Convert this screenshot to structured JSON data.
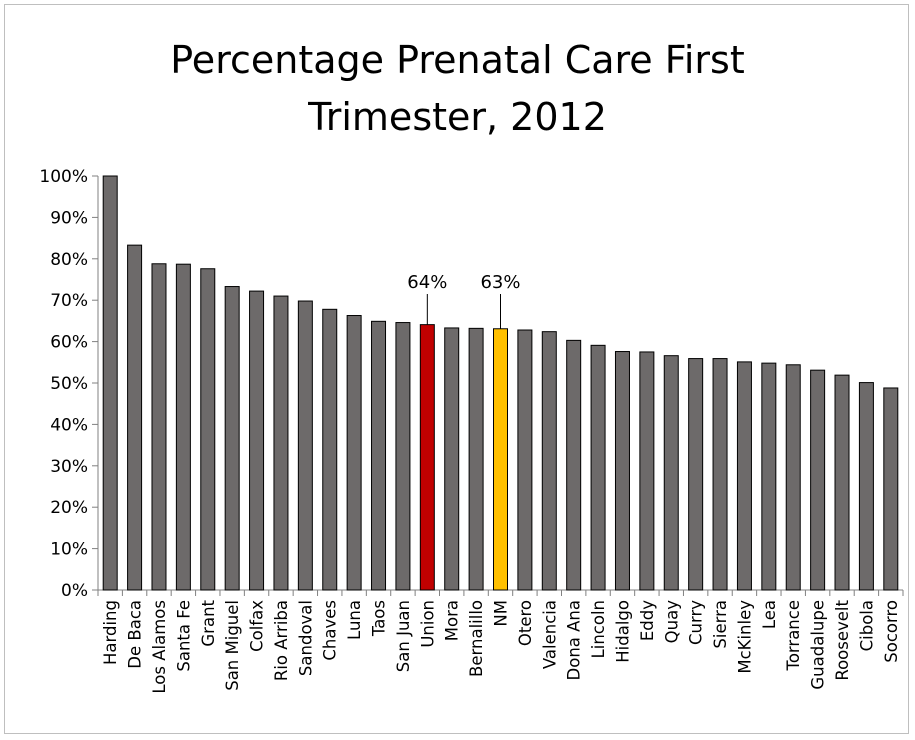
{
  "chart_data": {
    "type": "bar",
    "title": "Percentage Prenatal Care  First\nTrimester, 2012",
    "xlabel": "",
    "ylabel": "",
    "ylim": [
      0,
      100
    ],
    "yticks": [
      "0%",
      "10%",
      "20%",
      "30%",
      "40%",
      "50%",
      "60%",
      "70%",
      "80%",
      "90%",
      "100%"
    ],
    "grid": false,
    "legend": "none",
    "categories": [
      "Harding",
      "De Baca",
      "Los Alamos",
      "Santa Fe",
      "Grant",
      "San Miguel",
      "Colfax",
      "Rio Arriba",
      "Sandoval",
      "Chaves",
      "Luna",
      "Taos",
      "San Juan",
      "Union",
      "Mora",
      "Bernalillo",
      "NM",
      "Otero",
      "Valencia",
      "Dona Ana",
      "Lincoln",
      "Hidalgo",
      "Eddy",
      "Quay",
      "Curry",
      "Sierra",
      "McKinley",
      "Lea",
      "Torrance",
      "Guadalupe",
      "Roosevelt",
      "Cibola",
      "Socorro"
    ],
    "values": [
      100,
      83.3,
      78.8,
      78.7,
      77.6,
      73.3,
      72.2,
      71.0,
      69.8,
      67.8,
      66.3,
      64.9,
      64.6,
      64.1,
      63.3,
      63.2,
      63.1,
      62.8,
      62.4,
      60.3,
      59.1,
      57.6,
      57.5,
      56.6,
      55.9,
      55.9,
      55.1,
      54.8,
      54.4,
      53.1,
      51.9,
      50.1,
      48.8
    ],
    "colors": {
      "default": "#6d6a6a",
      "highlight_union": "#c00000",
      "highlight_nm": "#ffc000",
      "outline": "#000000"
    },
    "highlights": {
      "Union": "highlight_union",
      "NM": "highlight_nm"
    },
    "data_labels": [
      {
        "category": "Union",
        "text": "64%"
      },
      {
        "category": "NM",
        "text": "63%"
      }
    ]
  }
}
